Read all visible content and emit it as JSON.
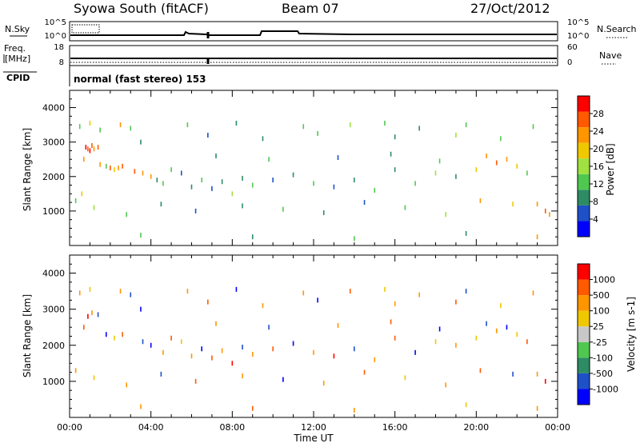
{
  "header": {
    "station": "Syowa South (fitACF)",
    "beam": "Beam 07",
    "date": "27/Oct/2012"
  },
  "summary_panels": {
    "nsky_label": "N.Sky",
    "nsearch_label": "N.Search",
    "nsky_ticks": [
      "10^5",
      "10^0"
    ],
    "nsearch_ticks": [
      "10^5",
      "10^0"
    ],
    "freq_label_1": "Freq.",
    "freq_label_2": "[MHz]",
    "freq_ticks": [
      "18",
      "8"
    ],
    "nave_label": "Nave",
    "nave_ticks": [
      "60",
      "0"
    ],
    "cpid_label": "CPID",
    "cpid_text": "normal (fast stereo) 153"
  },
  "colors": {
    "power_scale": [
      "#0000ff",
      "#1e50c8",
      "#2d8c64",
      "#50c850",
      "#a0e040",
      "#f0c800",
      "#ff9600",
      "#ff5a00",
      "#ff0000"
    ],
    "velocity_scale": [
      "#0000ff",
      "#1e50c8",
      "#2d8c64",
      "#50c850",
      "#c8c8c8",
      "#f0c800",
      "#ff9600",
      "#ff5a00",
      "#ff0000"
    ]
  },
  "chart_data": [
    {
      "type": "scatter",
      "title": "",
      "xlabel": "Time UT",
      "ylabel": "Slant Range [km]",
      "xlim": [
        "00:00",
        "24:00"
      ],
      "ylim": [
        0,
        4500
      ],
      "x_ticks": [
        "00:00",
        "04:00",
        "08:00",
        "12:00",
        "16:00",
        "20:00",
        "00:00"
      ],
      "y_ticks": [
        1000,
        2000,
        3000,
        4000
      ],
      "colorbar": {
        "label": "Power [dB]",
        "ticks": [
          "4",
          "8",
          "12",
          "16",
          "20",
          "24",
          "28"
        ]
      },
      "points": [
        [
          0.5,
          3450,
          "#50c850"
        ],
        [
          0.7,
          2500,
          "#ff9600"
        ],
        [
          0.8,
          2850,
          "#ff0000"
        ],
        [
          0.9,
          2800,
          "#ff5a00"
        ],
        [
          1.0,
          2750,
          "#ff0000"
        ],
        [
          1.1,
          2900,
          "#ff5a00"
        ],
        [
          1.2,
          2800,
          "#ff9600"
        ],
        [
          1.4,
          2850,
          "#ff5a00"
        ],
        [
          1.5,
          2350,
          "#ff9600"
        ],
        [
          1.8,
          2300,
          "#50c850"
        ],
        [
          2.0,
          2250,
          "#ff5a00"
        ],
        [
          2.2,
          2200,
          "#f0c800"
        ],
        [
          2.4,
          2250,
          "#ff9600"
        ],
        [
          2.6,
          2300,
          "#ff5a00"
        ],
        [
          1.0,
          3550,
          "#f0c800"
        ],
        [
          1.5,
          3350,
          "#50c850"
        ],
        [
          2.5,
          3500,
          "#ff9600"
        ],
        [
          3.0,
          3400,
          "#50c850"
        ],
        [
          3.5,
          3000,
          "#2d8c64"
        ],
        [
          3.2,
          2150,
          "#ff5a00"
        ],
        [
          3.6,
          2100,
          "#ff9600"
        ],
        [
          4.0,
          2000,
          "#ff9600"
        ],
        [
          4.3,
          1900,
          "#2d8c64"
        ],
        [
          4.6,
          1800,
          "#50c850"
        ],
        [
          5.0,
          2200,
          "#50c850"
        ],
        [
          5.5,
          2100,
          "#1e50c8"
        ],
        [
          6.0,
          1700,
          "#2d8c64"
        ],
        [
          6.5,
          1900,
          "#50c850"
        ],
        [
          7.0,
          1650,
          "#1e50c8"
        ],
        [
          7.5,
          1850,
          "#2d8c64"
        ],
        [
          8.0,
          1500,
          "#a0e040"
        ],
        [
          8.5,
          1950,
          "#2d8c64"
        ],
        [
          9.0,
          1750,
          "#50c850"
        ],
        [
          10.0,
          1900,
          "#1e50c8"
        ],
        [
          11.0,
          2050,
          "#2d8c64"
        ],
        [
          12.0,
          1800,
          "#50c850"
        ],
        [
          13.0,
          1700,
          "#1e50c8"
        ],
        [
          14.0,
          1900,
          "#2d8c64"
        ],
        [
          15.0,
          1600,
          "#50c850"
        ],
        [
          16.0,
          2200,
          "#2d8c64"
        ],
        [
          17.0,
          1800,
          "#50c850"
        ],
        [
          18.0,
          2100,
          "#a0e040"
        ],
        [
          19.0,
          2000,
          "#2d8c64"
        ],
        [
          20.0,
          2200,
          "#f0c800"
        ],
        [
          20.5,
          2600,
          "#ff9600"
        ],
        [
          21.0,
          2400,
          "#ff5a00"
        ],
        [
          21.5,
          2500,
          "#ff9600"
        ],
        [
          22.0,
          2300,
          "#f0c800"
        ],
        [
          22.5,
          2100,
          "#50c850"
        ],
        [
          23.0,
          1200,
          "#ff9600"
        ],
        [
          23.4,
          1000,
          "#ff5a00"
        ],
        [
          23.6,
          900,
          "#ff9600"
        ],
        [
          0.3,
          1300,
          "#50c850"
        ],
        [
          0.6,
          1500,
          "#f0c800"
        ],
        [
          1.2,
          1100,
          "#a0e040"
        ],
        [
          2.8,
          900,
          "#50c850"
        ],
        [
          4.5,
          1200,
          "#2d8c64"
        ],
        [
          6.2,
          1000,
          "#1e50c8"
        ],
        [
          8.5,
          1150,
          "#2d8c64"
        ],
        [
          10.5,
          1050,
          "#50c850"
        ],
        [
          12.5,
          950,
          "#2d8c64"
        ],
        [
          14.5,
          1250,
          "#1e50c8"
        ],
        [
          16.5,
          1100,
          "#50c850"
        ],
        [
          18.5,
          900,
          "#a0e040"
        ],
        [
          20.2,
          1300,
          "#ff9600"
        ],
        [
          21.8,
          1200,
          "#f0c800"
        ],
        [
          5.8,
          3500,
          "#50c850"
        ],
        [
          8.2,
          3550,
          "#2d8c64"
        ],
        [
          11.5,
          3450,
          "#50c850"
        ],
        [
          13.8,
          3500,
          "#a0e040"
        ],
        [
          15.5,
          3550,
          "#50c850"
        ],
        [
          17.2,
          3400,
          "#2d8c64"
        ],
        [
          19.5,
          3500,
          "#50c850"
        ],
        [
          22.8,
          3450,
          "#50c850"
        ],
        [
          6.8,
          3200,
          "#1e50c8"
        ],
        [
          9.5,
          3100,
          "#2d8c64"
        ],
        [
          12.2,
          3250,
          "#50c850"
        ],
        [
          16.0,
          3150,
          "#2d8c64"
        ],
        [
          19.0,
          3200,
          "#a0e040"
        ],
        [
          21.2,
          3100,
          "#50c850"
        ],
        [
          7.2,
          2600,
          "#2d8c64"
        ],
        [
          9.8,
          2500,
          "#50c850"
        ],
        [
          13.2,
          2550,
          "#1e50c8"
        ],
        [
          15.8,
          2650,
          "#2d8c64"
        ],
        [
          18.2,
          2450,
          "#50c850"
        ],
        [
          3.5,
          300,
          "#50c850"
        ],
        [
          9.0,
          250,
          "#2d8c64"
        ],
        [
          14.0,
          200,
          "#50c850"
        ],
        [
          19.5,
          350,
          "#2d8c64"
        ],
        [
          23.0,
          250,
          "#ff9600"
        ]
      ]
    },
    {
      "type": "scatter",
      "title": "",
      "xlabel": "Time UT",
      "ylabel": "Slant Range [km]",
      "xlim": [
        "00:00",
        "24:00"
      ],
      "ylim": [
        0,
        4500
      ],
      "x_ticks": [
        "00:00",
        "04:00",
        "08:00",
        "12:00",
        "16:00",
        "20:00",
        "00:00"
      ],
      "y_ticks": [
        1000,
        2000,
        3000,
        4000
      ],
      "colorbar": {
        "label": "Velocity [m s-1]",
        "ticks": [
          "1000",
          "500",
          "100",
          "25",
          "-25",
          "-100",
          "-500",
          "-1000"
        ]
      },
      "points": [
        [
          0.5,
          3450,
          "#ff9600"
        ],
        [
          0.7,
          2500,
          "#ff5a00"
        ],
        [
          0.9,
          2800,
          "#ff0000"
        ],
        [
          1.1,
          2900,
          "#ff9600"
        ],
        [
          1.4,
          2850,
          "#1e50c8"
        ],
        [
          1.8,
          2300,
          "#0000ff"
        ],
        [
          2.2,
          2200,
          "#f0c800"
        ],
        [
          2.6,
          2300,
          "#ff5a00"
        ],
        [
          1.0,
          3550,
          "#f0c800"
        ],
        [
          2.5,
          3500,
          "#ff9600"
        ],
        [
          3.0,
          3400,
          "#1e50c8"
        ],
        [
          3.5,
          3000,
          "#0000ff"
        ],
        [
          3.6,
          2100,
          "#1e50c8"
        ],
        [
          4.0,
          2000,
          "#0000ff"
        ],
        [
          4.6,
          1800,
          "#ff9600"
        ],
        [
          5.0,
          2200,
          "#ff5a00"
        ],
        [
          5.5,
          2100,
          "#f0c800"
        ],
        [
          6.0,
          1700,
          "#ff9600"
        ],
        [
          6.5,
          1900,
          "#0000ff"
        ],
        [
          7.0,
          1650,
          "#ff5a00"
        ],
        [
          7.5,
          1850,
          "#ff9600"
        ],
        [
          8.0,
          1500,
          "#ff0000"
        ],
        [
          8.5,
          1950,
          "#1e50c8"
        ],
        [
          9.0,
          1750,
          "#ff9600"
        ],
        [
          10.0,
          1900,
          "#ff5a00"
        ],
        [
          11.0,
          2050,
          "#0000ff"
        ],
        [
          12.0,
          1800,
          "#ff9600"
        ],
        [
          13.0,
          1700,
          "#ff0000"
        ],
        [
          14.0,
          1900,
          "#1e50c8"
        ],
        [
          15.0,
          1600,
          "#ff9600"
        ],
        [
          16.0,
          2200,
          "#ff5a00"
        ],
        [
          17.0,
          1800,
          "#0000ff"
        ],
        [
          18.0,
          2100,
          "#f0c800"
        ],
        [
          19.0,
          2000,
          "#ff9600"
        ],
        [
          20.0,
          2200,
          "#f0c800"
        ],
        [
          20.5,
          2600,
          "#1e50c8"
        ],
        [
          21.0,
          2400,
          "#ff9600"
        ],
        [
          21.5,
          2500,
          "#0000ff"
        ],
        [
          22.0,
          2300,
          "#f0c800"
        ],
        [
          22.5,
          2100,
          "#ff5a00"
        ],
        [
          23.0,
          1200,
          "#ff9600"
        ],
        [
          23.4,
          1000,
          "#ff0000"
        ],
        [
          0.3,
          1300,
          "#ff9600"
        ],
        [
          1.2,
          1100,
          "#f0c800"
        ],
        [
          2.8,
          900,
          "#ff9600"
        ],
        [
          4.5,
          1200,
          "#1e50c8"
        ],
        [
          6.2,
          1000,
          "#ff5a00"
        ],
        [
          8.5,
          1150,
          "#ff9600"
        ],
        [
          10.5,
          1050,
          "#0000ff"
        ],
        [
          12.5,
          950,
          "#ff9600"
        ],
        [
          14.5,
          1250,
          "#ff5a00"
        ],
        [
          16.5,
          1100,
          "#f0c800"
        ],
        [
          18.5,
          900,
          "#ff9600"
        ],
        [
          20.2,
          1300,
          "#ff5a00"
        ],
        [
          21.8,
          1200,
          "#1e50c8"
        ],
        [
          5.8,
          3500,
          "#ff9600"
        ],
        [
          8.2,
          3550,
          "#0000ff"
        ],
        [
          11.5,
          3450,
          "#ff9600"
        ],
        [
          13.8,
          3500,
          "#ff5a00"
        ],
        [
          15.5,
          3550,
          "#f0c800"
        ],
        [
          17.2,
          3400,
          "#ff9600"
        ],
        [
          19.5,
          3500,
          "#1e50c8"
        ],
        [
          22.8,
          3450,
          "#ff9600"
        ],
        [
          6.8,
          3200,
          "#ff5a00"
        ],
        [
          9.5,
          3100,
          "#ff9600"
        ],
        [
          12.2,
          3250,
          "#0000ff"
        ],
        [
          16.0,
          3150,
          "#ff9600"
        ],
        [
          19.0,
          3200,
          "#ff5a00"
        ],
        [
          21.2,
          3100,
          "#f0c800"
        ],
        [
          7.2,
          2600,
          "#ff9600"
        ],
        [
          9.8,
          2500,
          "#1e50c8"
        ],
        [
          13.2,
          2550,
          "#ff9600"
        ],
        [
          15.8,
          2650,
          "#ff5a00"
        ],
        [
          18.2,
          2450,
          "#0000ff"
        ],
        [
          3.5,
          300,
          "#ff9600"
        ],
        [
          9.0,
          250,
          "#ff5a00"
        ],
        [
          14.0,
          200,
          "#ff9600"
        ],
        [
          19.5,
          350,
          "#f0c800"
        ],
        [
          23.0,
          250,
          "#ff9600"
        ]
      ]
    }
  ]
}
